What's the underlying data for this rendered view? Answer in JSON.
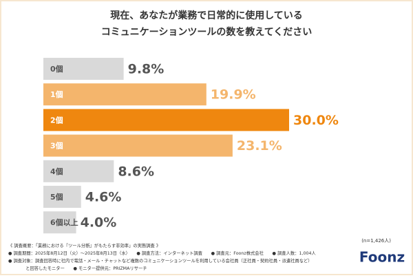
{
  "chart_data": {
    "type": "bar",
    "orientation": "horizontal",
    "title": [
      "現在、あなたが業務で日常的に使用している",
      "コミュニケーションツールの数を教えてください"
    ],
    "categories": [
      "0個",
      "1個",
      "2個",
      "3個",
      "4個",
      "5個",
      "6個以上"
    ],
    "values": [
      9.8,
      19.9,
      30.0,
      23.1,
      8.6,
      4.6,
      4.0
    ],
    "value_labels": [
      "9.8%",
      "19.9%",
      "30.0%",
      "23.1%",
      "8.6%",
      "4.6%",
      "4.0%"
    ],
    "colors": [
      "#d9d9d9",
      "#f4b56c",
      "#ef870f",
      "#f4b56c",
      "#d9d9d9",
      "#d9d9d9",
      "#d9d9d9"
    ]
  },
  "footer": {
    "sample": "(n=1,426人)",
    "notes": [
      "《 調査概要：「業務における『ツール分断』がもたらす非効率」の実態調査 》",
      "● 調査期間：2025年8月12日（火）～2025年8月13日（水）　　● 調査方法：インターネット調査　　● 調査元：Foonz株式会社　　● 調査人数：1,004人",
      "● 調査対象：調査回答時に社内で電話・メール・チャットなど複数のコミュニケーションツールを利用している会社員（正社員・契約社員・派遣社員など）",
      "　　　　と回答したモニター　　● モニター提供元：PRIZMAリサーチ"
    ],
    "logo": "Foonz"
  }
}
